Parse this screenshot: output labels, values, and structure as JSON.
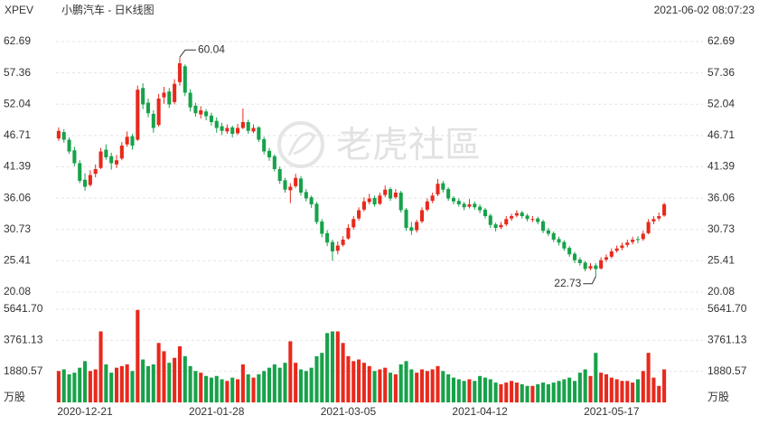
{
  "header": {
    "symbol": "XPEV",
    "title": "小鹏汽车 - 日K线图",
    "timestamp": "2021-06-02 08:07:23"
  },
  "watermark": "老虎社區",
  "chart_data": [
    {
      "type": "candlestick",
      "up_color": "#e8291c",
      "down_color": "#17a24a",
      "grid": true,
      "ylim": [
        20.08,
        62.69
      ],
      "yticks": [
        62.69,
        57.36,
        52.04,
        46.71,
        41.39,
        36.06,
        30.73,
        25.41,
        20.08
      ],
      "categories": [
        null,
        null,
        null,
        null,
        null,
        "2020-12-21",
        null,
        null,
        null,
        null,
        null,
        null,
        null,
        null,
        null,
        null,
        null,
        null,
        null,
        null,
        null,
        null,
        null,
        null,
        null,
        null,
        null,
        null,
        null,
        null,
        "2021-01-28",
        null,
        null,
        null,
        null,
        null,
        null,
        null,
        null,
        null,
        null,
        null,
        null,
        null,
        null,
        null,
        null,
        null,
        null,
        null,
        null,
        null,
        null,
        null,
        null,
        "2021-03-05",
        null,
        null,
        null,
        null,
        null,
        null,
        null,
        null,
        null,
        null,
        null,
        null,
        null,
        null,
        null,
        null,
        null,
        null,
        null,
        null,
        null,
        null,
        null,
        null,
        "2021-04-12",
        null,
        null,
        null,
        null,
        null,
        null,
        null,
        null,
        null,
        null,
        null,
        null,
        null,
        null,
        null,
        null,
        null,
        null,
        null,
        null,
        null,
        null,
        null,
        null,
        "2021-05-17",
        null,
        null,
        null,
        null,
        null,
        null,
        null,
        null,
        null,
        null
      ],
      "candles": [
        [
          46.2,
          48.1,
          45.8,
          47.5
        ],
        [
          47.3,
          47.8,
          45.5,
          46.0
        ],
        [
          46.0,
          46.4,
          43.6,
          44.0
        ],
        [
          44.2,
          44.8,
          41.5,
          42.0
        ],
        [
          42.0,
          42.5,
          38.6,
          39.0
        ],
        [
          39.2,
          40.3,
          37.3,
          38.0
        ],
        [
          38.3,
          40.8,
          38.0,
          40.0
        ],
        [
          40.2,
          41.8,
          39.6,
          41.0
        ],
        [
          41.2,
          44.6,
          41.0,
          44.0
        ],
        [
          44.3,
          45.2,
          42.6,
          43.0
        ],
        [
          43.2,
          43.8,
          40.9,
          42.0
        ],
        [
          41.8,
          43.4,
          41.2,
          42.5
        ],
        [
          42.8,
          45.6,
          42.5,
          45.0
        ],
        [
          45.2,
          47.4,
          44.8,
          46.5
        ],
        [
          46.6,
          47.0,
          44.3,
          45.0
        ],
        [
          46.0,
          55.2,
          45.8,
          54.5
        ],
        [
          54.8,
          55.6,
          51.2,
          52.0
        ],
        [
          52.3,
          53.0,
          49.8,
          50.5
        ],
        [
          50.4,
          51.0,
          47.2,
          48.0
        ],
        [
          48.5,
          53.8,
          48.2,
          53.0
        ],
        [
          53.2,
          55.0,
          52.1,
          54.0
        ],
        [
          54.2,
          54.8,
          51.4,
          52.0
        ],
        [
          52.4,
          56.3,
          52.0,
          55.5
        ],
        [
          55.8,
          60.04,
          55.2,
          59.0
        ],
        [
          58.5,
          58.8,
          53.4,
          54.0
        ],
        [
          54.0,
          54.6,
          50.8,
          51.5
        ],
        [
          51.8,
          52.3,
          49.9,
          50.5
        ],
        [
          50.3,
          51.7,
          49.6,
          51.0
        ],
        [
          50.8,
          51.2,
          49.3,
          50.0
        ],
        [
          50.1,
          50.6,
          48.4,
          49.0
        ],
        [
          49.2,
          49.8,
          47.2,
          48.0
        ],
        [
          48.3,
          48.9,
          46.8,
          47.5
        ],
        [
          47.4,
          48.6,
          47.0,
          48.0
        ],
        [
          48.1,
          48.4,
          46.4,
          47.0
        ],
        [
          47.1,
          48.7,
          46.8,
          48.0
        ],
        [
          48.0,
          51.3,
          47.8,
          49.0
        ],
        [
          49.0,
          49.4,
          47.0,
          47.5
        ],
        [
          47.4,
          48.6,
          47.1,
          48.0
        ],
        [
          48.1,
          48.3,
          45.6,
          46.0
        ],
        [
          46.1,
          46.5,
          43.5,
          44.0
        ],
        [
          44.1,
          44.6,
          42.4,
          43.0
        ],
        [
          43.2,
          43.5,
          40.6,
          41.0
        ],
        [
          41.0,
          41.4,
          38.5,
          39.0
        ],
        [
          39.1,
          39.5,
          37.0,
          37.5
        ],
        [
          37.4,
          38.6,
          35.2,
          38.0
        ],
        [
          38.1,
          40.2,
          37.8,
          39.5
        ],
        [
          39.4,
          39.8,
          36.5,
          37.0
        ],
        [
          37.1,
          37.6,
          35.5,
          36.0
        ],
        [
          36.2,
          36.5,
          34.4,
          35.0
        ],
        [
          35.1,
          35.4,
          31.6,
          32.0
        ],
        [
          32.1,
          32.5,
          29.4,
          30.0
        ],
        [
          30.1,
          30.6,
          27.9,
          28.5
        ],
        [
          28.6,
          29.0,
          25.4,
          27.0
        ],
        [
          27.1,
          28.7,
          26.5,
          28.0
        ],
        [
          28.1,
          29.6,
          27.8,
          29.0
        ],
        [
          29.2,
          31.6,
          29.0,
          31.0
        ],
        [
          31.1,
          33.0,
          30.7,
          32.5
        ],
        [
          32.6,
          34.5,
          32.2,
          34.0
        ],
        [
          34.1,
          36.2,
          33.8,
          35.5
        ],
        [
          35.4,
          36.8,
          35.0,
          36.0
        ],
        [
          36.1,
          36.5,
          34.6,
          35.0
        ],
        [
          35.1,
          37.0,
          34.9,
          36.5
        ],
        [
          36.6,
          38.2,
          36.2,
          37.5
        ],
        [
          37.6,
          37.9,
          35.6,
          36.0
        ],
        [
          36.2,
          37.6,
          35.9,
          37.0
        ],
        [
          37.0,
          37.3,
          33.6,
          34.0
        ],
        [
          34.1,
          34.4,
          30.5,
          31.0
        ],
        [
          31.1,
          32.0,
          29.8,
          30.5
        ],
        [
          30.6,
          32.4,
          30.2,
          32.0
        ],
        [
          32.1,
          34.5,
          31.8,
          34.0
        ],
        [
          34.1,
          36.0,
          33.8,
          35.5
        ],
        [
          35.6,
          37.0,
          35.2,
          36.5
        ],
        [
          36.7,
          39.3,
          36.4,
          38.5
        ],
        [
          38.6,
          39.0,
          37.0,
          37.5
        ],
        [
          37.6,
          37.9,
          35.6,
          36.0
        ],
        [
          36.1,
          36.4,
          35.0,
          35.5
        ],
        [
          35.6,
          36.0,
          34.6,
          35.0
        ],
        [
          35.1,
          35.4,
          34.0,
          34.5
        ],
        [
          34.6,
          35.9,
          34.3,
          35.0
        ],
        [
          35.1,
          35.5,
          34.1,
          34.5
        ],
        [
          34.6,
          35.0,
          33.5,
          34.0
        ],
        [
          34.1,
          34.4,
          32.6,
          33.0
        ],
        [
          33.1,
          33.4,
          31.0,
          31.5
        ],
        [
          31.6,
          31.9,
          30.4,
          31.0
        ],
        [
          31.1,
          32.0,
          30.8,
          31.5
        ],
        [
          31.6,
          33.0,
          31.3,
          32.5
        ],
        [
          32.6,
          33.4,
          32.2,
          33.0
        ],
        [
          33.1,
          34.0,
          32.8,
          33.5
        ],
        [
          33.6,
          33.9,
          32.6,
          33.0
        ],
        [
          33.1,
          33.4,
          32.1,
          32.5
        ],
        [
          32.4,
          33.0,
          32.0,
          32.5
        ],
        [
          32.6,
          32.9,
          31.6,
          32.0
        ],
        [
          32.1,
          32.4,
          30.1,
          30.5
        ],
        [
          30.6,
          31.0,
          29.6,
          30.0
        ],
        [
          30.1,
          30.4,
          28.6,
          29.0
        ],
        [
          29.1,
          29.5,
          28.0,
          28.5
        ],
        [
          28.6,
          28.9,
          27.1,
          27.5
        ],
        [
          27.6,
          27.9,
          26.1,
          26.5
        ],
        [
          26.6,
          26.9,
          25.0,
          25.5
        ],
        [
          25.6,
          26.0,
          24.6,
          25.0
        ],
        [
          25.1,
          25.4,
          23.6,
          24.0
        ],
        [
          24.1,
          25.0,
          23.8,
          24.5
        ],
        [
          24.6,
          25.0,
          22.73,
          24.0
        ],
        [
          24.1,
          26.0,
          23.9,
          25.5
        ],
        [
          25.6,
          26.5,
          25.2,
          26.0
        ],
        [
          26.1,
          27.5,
          25.8,
          27.0
        ],
        [
          27.1,
          28.0,
          26.8,
          27.5
        ],
        [
          27.6,
          28.5,
          27.2,
          28.0
        ],
        [
          28.1,
          29.0,
          27.7,
          28.5
        ],
        [
          28.6,
          29.5,
          28.2,
          29.0
        ],
        [
          29.1,
          29.6,
          28.4,
          29.0
        ],
        [
          29.1,
          30.5,
          28.8,
          30.0
        ],
        [
          30.1,
          32.5,
          29.9,
          32.0
        ],
        [
          32.1,
          33.0,
          31.6,
          32.5
        ],
        [
          32.6,
          33.6,
          32.2,
          33.0
        ],
        [
          33.1,
          35.3,
          32.9,
          35.0
        ]
      ]
    },
    {
      "type": "volume",
      "unit_label": "万股",
      "grid": true,
      "ylim": [
        0,
        5641.7
      ],
      "yticks": [
        {
          "value": 5641.7,
          "label": "5641.70"
        },
        3761.13,
        1880.57
      ],
      "values": [
        1900,
        2000,
        1700,
        1800,
        2100,
        2500,
        1900,
        2000,
        4300,
        2300,
        1800,
        2100,
        2200,
        2300,
        1900,
        5600,
        2600,
        2200,
        2300,
        3600,
        3100,
        2400,
        2700,
        3400,
        2800,
        2200,
        1900,
        1800,
        1600,
        1500,
        1600,
        1400,
        1300,
        1500,
        1400,
        2300,
        1700,
        1500,
        1700,
        1900,
        2100,
        2300,
        2100,
        2400,
        3700,
        2400,
        2000,
        1900,
        2100,
        2800,
        3000,
        4200,
        4300,
        4300,
        3600,
        2800,
        2500,
        2600,
        2400,
        2200,
        1900,
        2000,
        2100,
        1800,
        1700,
        2300,
        2500,
        2000,
        1800,
        2000,
        1900,
        2000,
        2200,
        1900,
        1700,
        1500,
        1400,
        1300,
        1400,
        1300,
        1600,
        1500,
        1400,
        1200,
        1100,
        1200,
        1300,
        1200,
        1100,
        1000,
        1000,
        1100,
        1200,
        1100,
        1200,
        1300,
        1400,
        1500,
        1300,
        1800,
        2000,
        1600,
        3000,
        1800,
        1700,
        1500,
        1400,
        1300,
        1300,
        1200,
        1400,
        1900,
        3000,
        1500,
        1000,
        2000
      ]
    }
  ]
}
